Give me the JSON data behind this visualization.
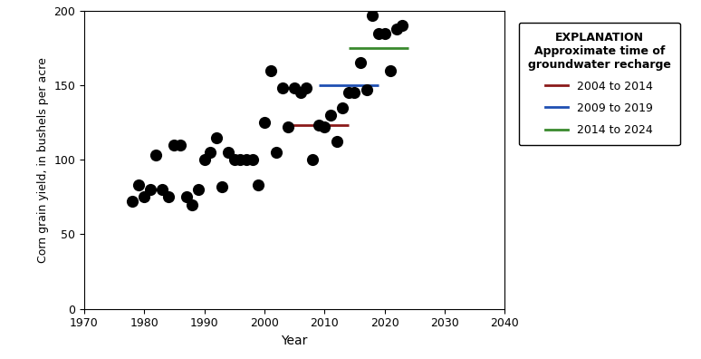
{
  "scatter_data": [
    [
      1978,
      72
    ],
    [
      1979,
      83
    ],
    [
      1980,
      75
    ],
    [
      1981,
      80
    ],
    [
      1982,
      103
    ],
    [
      1983,
      80
    ],
    [
      1984,
      75
    ],
    [
      1985,
      110
    ],
    [
      1986,
      110
    ],
    [
      1987,
      75
    ],
    [
      1988,
      70
    ],
    [
      1989,
      80
    ],
    [
      1990,
      100
    ],
    [
      1991,
      105
    ],
    [
      1992,
      115
    ],
    [
      1993,
      82
    ],
    [
      1994,
      105
    ],
    [
      1995,
      100
    ],
    [
      1996,
      100
    ],
    [
      1997,
      100
    ],
    [
      1998,
      100
    ],
    [
      1999,
      83
    ],
    [
      2000,
      125
    ],
    [
      2001,
      160
    ],
    [
      2002,
      105
    ],
    [
      2003,
      148
    ],
    [
      2004,
      122
    ],
    [
      2005,
      148
    ],
    [
      2006,
      145
    ],
    [
      2007,
      148
    ],
    [
      2008,
      100
    ],
    [
      2009,
      123
    ],
    [
      2010,
      122
    ],
    [
      2011,
      130
    ],
    [
      2012,
      112
    ],
    [
      2013,
      135
    ],
    [
      2014,
      145
    ],
    [
      2015,
      145
    ],
    [
      2016,
      165
    ],
    [
      2017,
      147
    ],
    [
      2018,
      197
    ],
    [
      2019,
      185
    ],
    [
      2020,
      185
    ],
    [
      2021,
      160
    ],
    [
      2022,
      188
    ],
    [
      2023,
      190
    ]
  ],
  "lines": [
    {
      "x_start": 2004,
      "x_end": 2014,
      "y": 123,
      "color": "#8B1A1A",
      "label": "2004 to 2014",
      "lw": 2.0
    },
    {
      "x_start": 2009,
      "x_end": 2019,
      "y": 150,
      "color": "#1F4FB2",
      "label": "2009 to 2019",
      "lw": 2.0
    },
    {
      "x_start": 2014,
      "x_end": 2024,
      "y": 175,
      "color": "#3A8A2E",
      "label": "2014 to 2024",
      "lw": 2.0
    }
  ],
  "xlim": [
    1970,
    2040
  ],
  "ylim": [
    0,
    200
  ],
  "xticks": [
    1970,
    1980,
    1990,
    2000,
    2010,
    2020,
    2030,
    2040
  ],
  "yticks": [
    0,
    50,
    100,
    150,
    200
  ],
  "xlabel": "Year",
  "ylabel": "Corn grain yield, in bushels per acre",
  "scatter_color": "black",
  "scatter_size": 90,
  "figsize": [
    7.74,
    3.96
  ],
  "dpi": 100
}
